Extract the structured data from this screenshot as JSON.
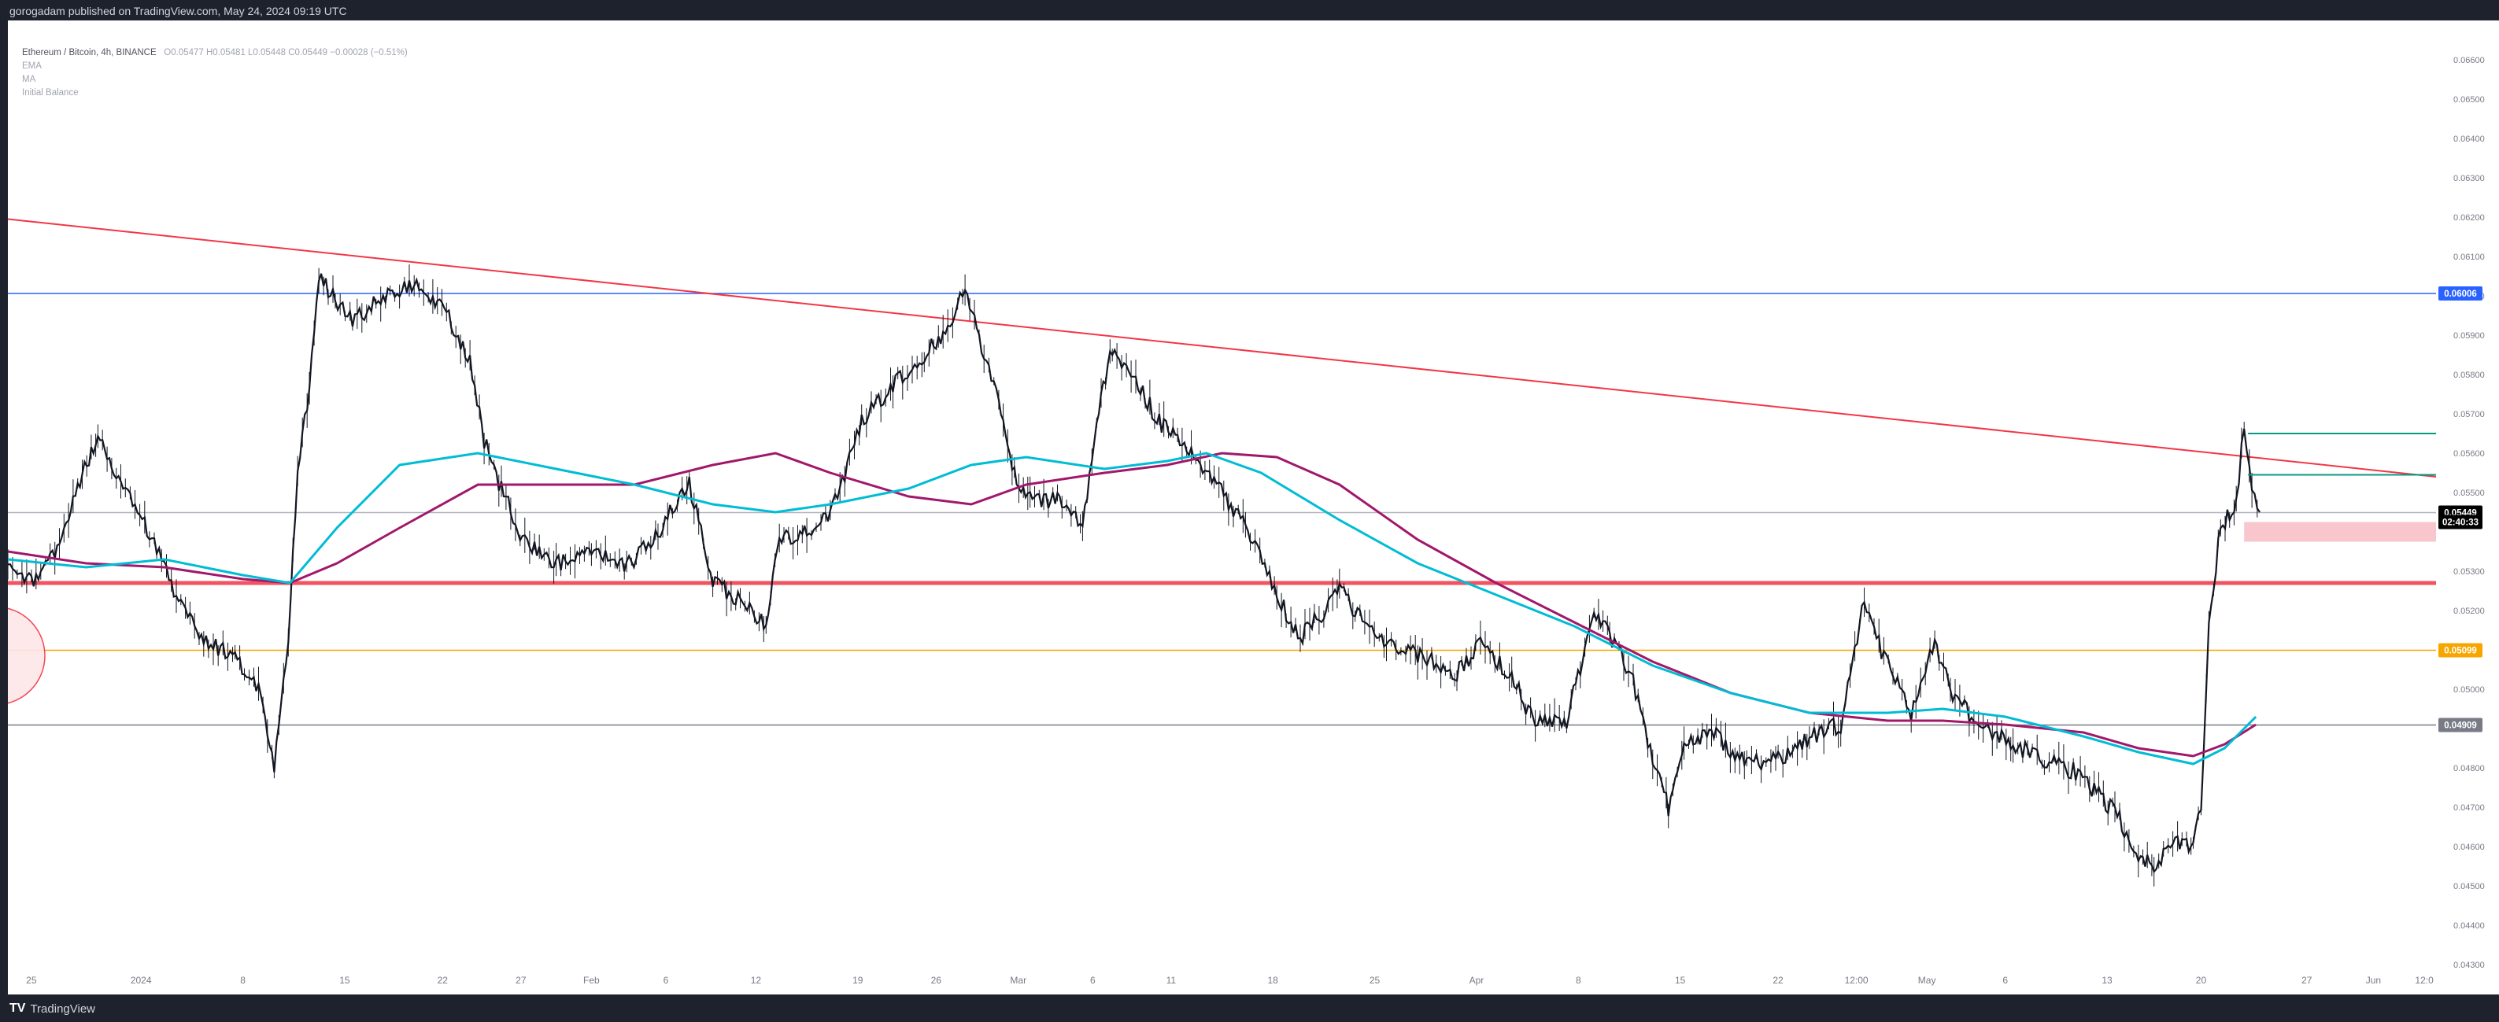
{
  "header": {
    "published": "gorogadam published on TradingView.com, May 24, 2024 09:19 UTC"
  },
  "legend": {
    "pair": "Ethereum / Bitcoin, 4h, BINANCE",
    "ohlc": "O0.05477  H0.05481  L0.05448  C0.05449  −0.00028 (−0.51%)",
    "indicators": [
      "EMA",
      "MA",
      "Initial Balance"
    ]
  },
  "footer": {
    "brand": "TradingView"
  },
  "chart_data": {
    "type": "candlestick",
    "symbol": "ETHBTC",
    "timeframe": "4h",
    "exchange": "BINANCE",
    "last": {
      "open": 0.05477,
      "high": 0.05481,
      "low": 0.05448,
      "close": 0.05449,
      "change": -0.00028,
      "change_pct": -0.51
    },
    "ylim": [
      0.043,
      0.067
    ],
    "y_ticks": [
      "0.06600",
      "0.06500",
      "0.06400",
      "0.06300",
      "0.06200",
      "0.06100",
      "0.06000",
      "0.05900",
      "0.05800",
      "0.05700",
      "0.05600",
      "0.05500",
      "0.05300",
      "0.05200",
      "0.05000",
      "0.04800",
      "0.04700",
      "0.04600",
      "0.04500",
      "0.04400",
      "0.04300"
    ],
    "x_ticks": [
      "25",
      "2024",
      "8",
      "15",
      "22",
      "27",
      "Feb",
      "6",
      "12",
      "19",
      "26",
      "Mar",
      "6",
      "11",
      "18",
      "25",
      "Apr",
      "8",
      "15",
      "22",
      "12:00",
      "May",
      "6",
      "13",
      "20",
      "27",
      "Jun",
      "12:0"
    ],
    "price_labels": [
      {
        "label": "0.06006",
        "price": 0.06006,
        "color": "#2962ff"
      },
      {
        "label": "0.05449",
        "price": 0.05449,
        "color": "#000000"
      },
      {
        "label": "02:40:33",
        "price": 0.05425,
        "color": "#000000"
      },
      {
        "label": "0.05099",
        "price": 0.05099,
        "color": "#f7a600"
      },
      {
        "label": "0.04909",
        "price": 0.04909,
        "color": "#787b86"
      }
    ],
    "price_series": [
      [
        0,
        0.053
      ],
      [
        30,
        0.0527
      ],
      [
        60,
        0.0535
      ],
      [
        95,
        0.0555
      ],
      [
        115,
        0.0563
      ],
      [
        150,
        0.0552
      ],
      [
        190,
        0.0536
      ],
      [
        215,
        0.0523
      ],
      [
        250,
        0.0513
      ],
      [
        290,
        0.0508
      ],
      [
        320,
        0.05
      ],
      [
        340,
        0.0481
      ],
      [
        358,
        0.0513
      ],
      [
        370,
        0.0556
      ],
      [
        385,
        0.0577
      ],
      [
        397,
        0.0605
      ],
      [
        418,
        0.0599
      ],
      [
        440,
        0.0593
      ],
      [
        470,
        0.0599
      ],
      [
        500,
        0.0601
      ],
      [
        525,
        0.0603
      ],
      [
        560,
        0.0596
      ],
      [
        590,
        0.0583
      ],
      [
        608,
        0.0563
      ],
      [
        630,
        0.0551
      ],
      [
        660,
        0.0537
      ],
      [
        700,
        0.0532
      ],
      [
        745,
        0.0535
      ],
      [
        790,
        0.0531
      ],
      [
        830,
        0.054
      ],
      [
        870,
        0.0552
      ],
      [
        900,
        0.0528
      ],
      [
        935,
        0.0522
      ],
      [
        968,
        0.0516
      ],
      [
        985,
        0.0538
      ],
      [
        1020,
        0.054
      ],
      [
        1050,
        0.0544
      ],
      [
        1090,
        0.0568
      ],
      [
        1130,
        0.0577
      ],
      [
        1170,
        0.0585
      ],
      [
        1200,
        0.0592
      ],
      [
        1222,
        0.0602
      ],
      [
        1240,
        0.0589
      ],
      [
        1265,
        0.0574
      ],
      [
        1285,
        0.0555
      ],
      [
        1305,
        0.0548
      ],
      [
        1340,
        0.0548
      ],
      [
        1372,
        0.0541
      ],
      [
        1390,
        0.0569
      ],
      [
        1410,
        0.0587
      ],
      [
        1440,
        0.0578
      ],
      [
        1470,
        0.0568
      ],
      [
        1505,
        0.0561
      ],
      [
        1540,
        0.0553
      ],
      [
        1580,
        0.0541
      ],
      [
        1620,
        0.0524
      ],
      [
        1650,
        0.0513
      ],
      [
        1680,
        0.052
      ],
      [
        1700,
        0.0527
      ],
      [
        1720,
        0.0519
      ],
      [
        1760,
        0.0512
      ],
      [
        1800,
        0.0509
      ],
      [
        1850,
        0.0504
      ],
      [
        1880,
        0.0512
      ],
      [
        1920,
        0.0503
      ],
      [
        1950,
        0.0491
      ],
      [
        1990,
        0.0492
      ],
      [
        2025,
        0.0519
      ],
      [
        2045,
        0.0514
      ],
      [
        2075,
        0.0502
      ],
      [
        2100,
        0.0482
      ],
      [
        2120,
        0.047
      ],
      [
        2140,
        0.0485
      ],
      [
        2175,
        0.0489
      ],
      [
        2220,
        0.0481
      ],
      [
        2260,
        0.0482
      ],
      [
        2300,
        0.0488
      ],
      [
        2340,
        0.0491
      ],
      [
        2370,
        0.0523
      ],
      [
        2395,
        0.0508
      ],
      [
        2430,
        0.0494
      ],
      [
        2460,
        0.0512
      ],
      [
        2480,
        0.05
      ],
      [
        2510,
        0.0492
      ],
      [
        2560,
        0.0486
      ],
      [
        2600,
        0.0482
      ],
      [
        2640,
        0.0479
      ],
      [
        2690,
        0.0469
      ],
      [
        2720,
        0.0458
      ],
      [
        2740,
        0.0455
      ],
      [
        2770,
        0.0461
      ],
      [
        2790,
        0.046
      ],
      [
        2800,
        0.047
      ],
      [
        2810,
        0.0518
      ],
      [
        2825,
        0.0541
      ],
      [
        2845,
        0.0547
      ],
      [
        2855,
        0.0567
      ],
      [
        2865,
        0.0552
      ],
      [
        2875,
        0.0545
      ]
    ],
    "ema_series": [
      [
        0,
        0.0533
      ],
      [
        100,
        0.0531
      ],
      [
        200,
        0.0533
      ],
      [
        300,
        0.0529
      ],
      [
        360,
        0.0527
      ],
      [
        420,
        0.0541
      ],
      [
        500,
        0.0557
      ],
      [
        600,
        0.056
      ],
      [
        700,
        0.0556
      ],
      [
        800,
        0.0552
      ],
      [
        900,
        0.0547
      ],
      [
        980,
        0.0545
      ],
      [
        1050,
        0.0547
      ],
      [
        1150,
        0.0551
      ],
      [
        1230,
        0.0557
      ],
      [
        1300,
        0.0559
      ],
      [
        1400,
        0.0556
      ],
      [
        1480,
        0.0558
      ],
      [
        1530,
        0.056
      ],
      [
        1600,
        0.0555
      ],
      [
        1700,
        0.0543
      ],
      [
        1800,
        0.0532
      ],
      [
        1900,
        0.0524
      ],
      [
        2000,
        0.0516
      ],
      [
        2100,
        0.0506
      ],
      [
        2200,
        0.0499
      ],
      [
        2300,
        0.0494
      ],
      [
        2400,
        0.0494
      ],
      [
        2470,
        0.0495
      ],
      [
        2550,
        0.0493
      ],
      [
        2650,
        0.0488
      ],
      [
        2720,
        0.0484
      ],
      [
        2790,
        0.0481
      ],
      [
        2830,
        0.0485
      ],
      [
        2870,
        0.0493
      ]
    ],
    "ma_series": [
      [
        0,
        0.0535
      ],
      [
        100,
        0.0532
      ],
      [
        200,
        0.0531
      ],
      [
        300,
        0.0528
      ],
      [
        360,
        0.0527
      ],
      [
        420,
        0.0532
      ],
      [
        500,
        0.0541
      ],
      [
        600,
        0.0552
      ],
      [
        700,
        0.0552
      ],
      [
        800,
        0.0552
      ],
      [
        900,
        0.0557
      ],
      [
        980,
        0.056
      ],
      [
        1050,
        0.0555
      ],
      [
        1150,
        0.0549
      ],
      [
        1230,
        0.0547
      ],
      [
        1300,
        0.0552
      ],
      [
        1400,
        0.0555
      ],
      [
        1480,
        0.0557
      ],
      [
        1550,
        0.056
      ],
      [
        1620,
        0.0559
      ],
      [
        1700,
        0.0552
      ],
      [
        1800,
        0.0538
      ],
      [
        1900,
        0.0527
      ],
      [
        2000,
        0.0517
      ],
      [
        2100,
        0.0507
      ],
      [
        2200,
        0.0499
      ],
      [
        2300,
        0.0494
      ],
      [
        2400,
        0.0492
      ],
      [
        2470,
        0.0492
      ],
      [
        2550,
        0.0491
      ],
      [
        2650,
        0.0489
      ],
      [
        2720,
        0.0485
      ],
      [
        2790,
        0.0483
      ],
      [
        2830,
        0.0486
      ],
      [
        2870,
        0.0491
      ]
    ],
    "trendline": {
      "color": "#f23645",
      "points": [
        [
          0,
          0.06195
        ],
        [
          3100,
          0.0554
        ]
      ]
    },
    "horizontal_lines": [
      {
        "price": 0.06006,
        "color": "#2962ff"
      },
      {
        "price": 0.05449,
        "color": "#b2b5be"
      },
      {
        "price": 0.0527,
        "color": "#f23645",
        "width": 5
      },
      {
        "price": 0.05099,
        "color": "#f7a600"
      },
      {
        "price": 0.04909,
        "color": "#787b86"
      }
    ],
    "zones": [
      {
        "from": 0.05375,
        "to": 0.05425,
        "color": "#f7b8c0"
      }
    ],
    "green_segments": [
      {
        "price": 0.0565,
        "x0": 2860,
        "x1": 3100
      },
      {
        "price": 0.05545,
        "x0": 2860,
        "x1": 3100
      }
    ]
  }
}
